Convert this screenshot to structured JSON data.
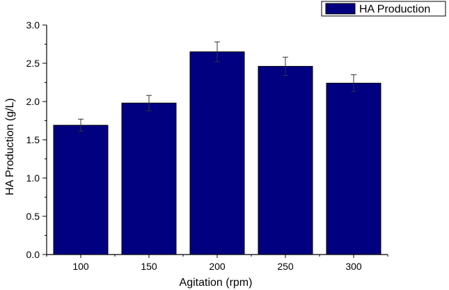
{
  "chart_data": {
    "type": "bar",
    "categories": [
      "100",
      "150",
      "200",
      "250",
      "300"
    ],
    "series": [
      {
        "name": "HA Production",
        "values": [
          1.69,
          1.98,
          2.65,
          2.46,
          2.24
        ],
        "errors": [
          0.08,
          0.1,
          0.13,
          0.12,
          0.11
        ]
      }
    ],
    "xlabel": "Agitation (rpm)",
    "ylabel": "HA Production (g/L)",
    "ylim": [
      0,
      3.0
    ],
    "yticks": [
      "0.0",
      "0.5",
      "1.0",
      "1.5",
      "2.0",
      "2.5",
      "3.0"
    ],
    "legend_placement": "top-right",
    "grid": false,
    "colors": {
      "bar": "#000080",
      "axis": "#000000"
    }
  }
}
